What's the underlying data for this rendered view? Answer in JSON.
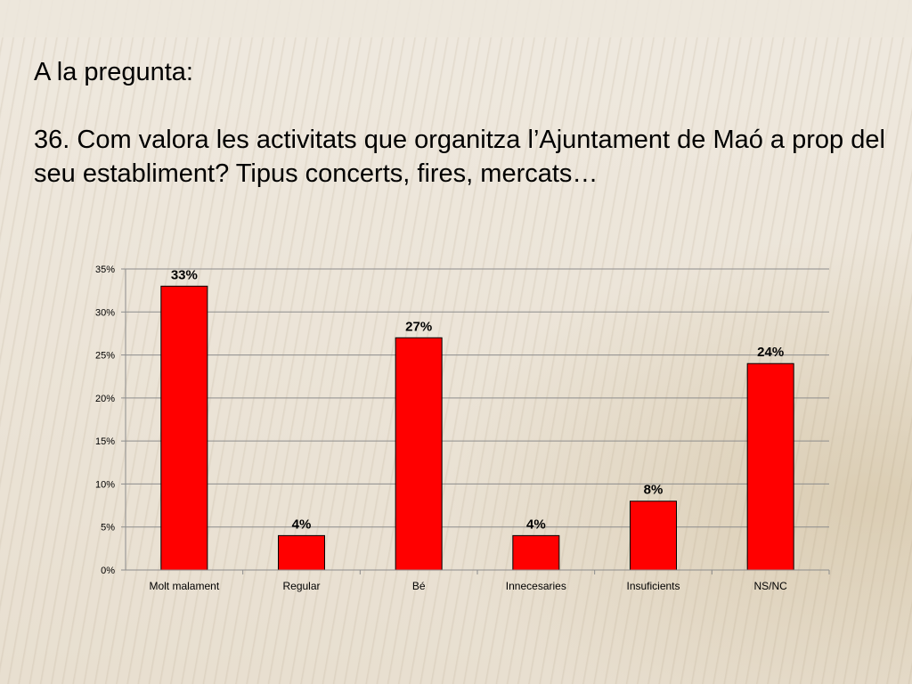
{
  "slide": {
    "line1": "A la pregunta:",
    "question": "36. Com valora les activitats que organitza l’Ajuntament de Maó a prop del seu establiment? Tipus concerts, fires, mercats…"
  },
  "chart_data": {
    "type": "bar",
    "categories": [
      "Molt malament",
      "Regular",
      "Bé",
      "Innecesaries",
      "Insuficients",
      "NS/NC"
    ],
    "values": [
      33,
      4,
      27,
      4,
      8,
      24
    ],
    "data_labels": [
      "33%",
      "4%",
      "27%",
      "4%",
      "8%",
      "24%"
    ],
    "ylim": [
      0,
      35
    ],
    "yticks": [
      0,
      5,
      10,
      15,
      20,
      25,
      30,
      35
    ],
    "ytick_labels": [
      "0%",
      "5%",
      "10%",
      "15%",
      "20%",
      "25%",
      "30%",
      "35%"
    ],
    "title": "",
    "xlabel": "",
    "ylabel": "",
    "grid": true,
    "legend": "none",
    "bar_color": "#ff0000"
  }
}
